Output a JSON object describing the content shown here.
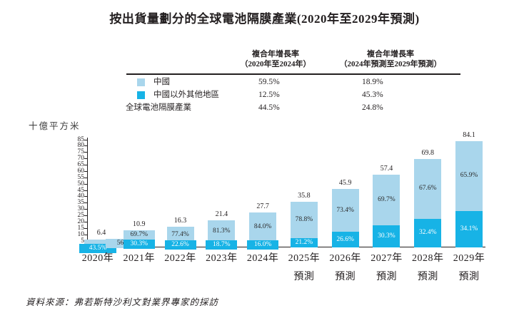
{
  "title": "按出貨量劃分的全球電池隔膜產業(2020年至2029年預測)",
  "colors": {
    "china_light_blue": "#a9d6ec",
    "other_dark_blue": "#17b3e6",
    "axis_black": "#231f20"
  },
  "cagr_table": {
    "col1_header_line1": "複合年增長率",
    "col1_header_line2": "（2020年至2024年）",
    "col2_header_line1": "複合年增長率",
    "col2_header_line2": "（2024年預測至2029年預測）",
    "rows": [
      {
        "label": "中國",
        "swatch": "light",
        "cagr_2020_2024": "59.5%",
        "cagr_2024_2029": "18.9%"
      },
      {
        "label": "中國以外其他地區",
        "swatch": "dark",
        "cagr_2020_2024": "12.5%",
        "cagr_2024_2029": "45.3%"
      },
      {
        "label": "全球電池隔膜產業",
        "swatch": "none",
        "cagr_2020_2024": "44.5%",
        "cagr_2024_2029": "24.8%"
      }
    ]
  },
  "chart_data": {
    "type": "bar",
    "stacked": true,
    "title": "按出貨量劃分的全球電池隔膜產業(2020年至2029年預測)",
    "ylabel": "十億平方米",
    "ylim": [
      0,
      85
    ],
    "ytick_step": 5,
    "grid": false,
    "categories": [
      {
        "line1": "2020年",
        "line2": ""
      },
      {
        "line1": "2021年",
        "line2": ""
      },
      {
        "line1": "2022年",
        "line2": ""
      },
      {
        "line1": "2023年",
        "line2": ""
      },
      {
        "line1": "2024年",
        "line2": ""
      },
      {
        "line1": "2025年",
        "line2": "預測"
      },
      {
        "line1": "2026年",
        "line2": "預測"
      },
      {
        "line1": "2027年",
        "line2": "預測"
      },
      {
        "line1": "2028年",
        "line2": "預測"
      },
      {
        "line1": "2029年",
        "line2": "預測"
      }
    ],
    "totals": [
      6.4,
      10.9,
      16.3,
      21.4,
      27.7,
      35.8,
      45.9,
      57.4,
      69.8,
      84.1
    ],
    "series": [
      {
        "name": "中國",
        "position": "top",
        "color": "#a9d6ec",
        "share_pct": [
          56.5,
          69.7,
          77.4,
          81.3,
          84.0,
          78.8,
          73.4,
          69.7,
          67.6,
          65.9
        ]
      },
      {
        "name": "中國以外其他地區",
        "position": "bottom",
        "color": "#17b3e6",
        "share_pct": [
          43.5,
          30.3,
          22.6,
          18.7,
          16.0,
          21.2,
          26.6,
          30.3,
          32.4,
          34.1
        ]
      }
    ]
  },
  "source": "資料來源：弗若斯特沙利文對業界專家的採訪"
}
